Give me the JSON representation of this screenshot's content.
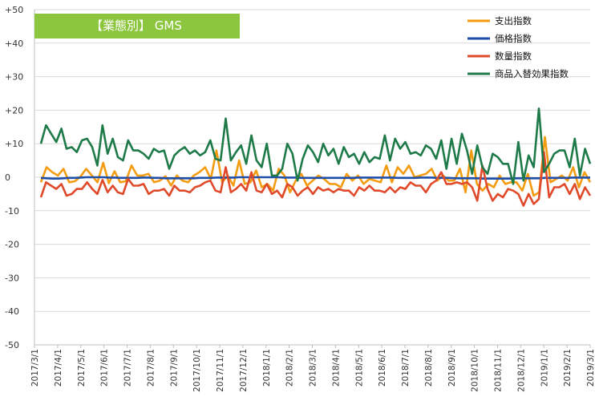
{
  "chart_data": {
    "type": "line",
    "title": "【業態別】 GMS",
    "xlabel": "",
    "ylabel": "",
    "ylim": [
      -50,
      50
    ],
    "y_ticks": [
      "+50",
      "+40",
      "+30",
      "+20",
      "+10",
      "0",
      "-10",
      "-20",
      "-30",
      "-40",
      "-50"
    ],
    "y_tick_values": [
      50,
      40,
      30,
      20,
      10,
      0,
      -10,
      -20,
      -30,
      -40,
      -50
    ],
    "x_range": [
      "2017/3/1",
      "2019/3/1"
    ],
    "x_ticks": [
      "2017/3/1",
      "2017/4/1",
      "2017/5/1",
      "2017/6/1",
      "2017/7/1",
      "2017/8/1",
      "2017/9/1",
      "2017/10/1",
      "2017/11/1",
      "2017/12/1",
      "2018/1/1",
      "2018/2/1",
      "2018/3/1",
      "2018/4/1",
      "2018/5/1",
      "2018/6/1",
      "2018/7/1",
      "2018/8/1",
      "2018/9/1",
      "2018/10/1",
      "2018/11/1",
      "2018/12/1",
      "2019/1/1",
      "2019/2/1",
      "2019/3/1"
    ],
    "grid": true,
    "legend_position": "top-right",
    "series": [
      {
        "name": "支出指数",
        "color": "#f39c12",
        "values": [
          -1.5,
          3,
          1.5,
          0.5,
          2.5,
          -1.5,
          -1.2,
          0.2,
          2.5,
          0.5,
          -1.5,
          4.3,
          -1.8,
          1.8,
          -1.5,
          -1.2,
          3.5,
          0.5,
          0.5,
          1,
          -1.5,
          -1,
          0.3,
          -2.5,
          0.5,
          -1,
          -1.5,
          0.5,
          1.5,
          3,
          -0.5,
          8,
          -1.5,
          0.5,
          -2.5,
          5,
          -2,
          -1.5,
          2,
          -3,
          -2,
          -4,
          2.5,
          0.5,
          -4.5,
          -1,
          1,
          -2.5,
          -1,
          0.5,
          -0.5,
          -2,
          -2,
          -3,
          1,
          -1,
          0.5,
          -2,
          -0.5,
          -1,
          -1.5,
          3.5,
          -1.5,
          3,
          1,
          3.5,
          0,
          0.5,
          1,
          2.5,
          -1,
          0.5,
          -1,
          -1,
          2.5,
          -4.5,
          8,
          -2,
          -4,
          -2,
          -3,
          0.5,
          -2,
          -1.5,
          -1.5,
          -4,
          1,
          -5.5,
          -4.5,
          12,
          -1.5,
          -0.5,
          0.5,
          -1,
          3,
          -3,
          1.5,
          -1.5
        ]
      },
      {
        "name": "価格指数",
        "color": "#1f4ea8",
        "values": [
          -0.2,
          -0.3,
          -0.4,
          -0.4,
          -0.3,
          -0.2,
          -0.2,
          -0.1,
          0,
          0,
          0,
          0,
          -0.1,
          -0.1,
          -0.2,
          -0.2,
          -0.2,
          -0.2,
          -0.1,
          -0.1,
          -0.2,
          -0.2,
          -0.3,
          -0.3,
          -0.3,
          -0.3,
          -0.3,
          -0.3,
          -0.2,
          -0.2,
          -0.2,
          -0.1,
          -0.1,
          -0.1,
          -0.1,
          0,
          0,
          0,
          0,
          0,
          0,
          0,
          0,
          -0.1,
          -0.1,
          -0.1,
          -0.2,
          -0.2,
          -0.2,
          -0.2,
          -0.2,
          -0.2,
          -0.2,
          -0.2,
          -0.2,
          -0.2,
          -0.1,
          -0.1,
          -0.1,
          -0.1,
          -0.1,
          -0.1,
          -0.1,
          -0.2,
          -0.2,
          -0.2,
          -0.2,
          -0.1,
          -0.1,
          -0.1,
          -0.2,
          -0.2,
          -0.2,
          -0.3,
          -0.3,
          -0.3,
          -0.3,
          -0.3,
          -0.4,
          -0.4,
          -0.4,
          -0.4,
          -0.4,
          -0.4,
          -0.3,
          -0.3,
          -0.3,
          -0.3,
          -0.3,
          -0.2,
          -0.2,
          -0.2,
          -0.2,
          -0.2,
          -0.1,
          -0.1,
          -0.1,
          -0.1
        ]
      },
      {
        "name": "数量指数",
        "color": "#e04a2a",
        "values": [
          -6,
          -1.5,
          -2.5,
          -3.5,
          -2,
          -5.5,
          -5,
          -3.5,
          -3.5,
          -1.5,
          -3.5,
          -5,
          -0.8,
          -4.5,
          -2.5,
          -4.5,
          -5,
          -0.5,
          -2.5,
          -2.5,
          -2,
          -5,
          -4,
          -4,
          -3.5,
          -5.5,
          -2.5,
          -4,
          -4,
          -4.5,
          -3,
          -2.5,
          -1.5,
          -1,
          -4,
          -4.5,
          3,
          -4.5,
          -3.5,
          -2,
          -4,
          1.5,
          -4,
          -4.5,
          -2,
          -5,
          -4,
          -6,
          -2,
          -3,
          -5.5,
          -4,
          -3,
          -5,
          -3,
          -4,
          -3.5,
          -4.5,
          -3.5,
          -4,
          -4,
          -5.5,
          -3,
          -4,
          -2.5,
          -4,
          -4,
          -4.5,
          -3,
          -4.5,
          -3,
          -3.5,
          -1.5,
          -2.5,
          -2.5,
          -4.5,
          -2,
          -1,
          1.5,
          -2,
          -2,
          -1.5,
          -2,
          -1.5,
          -3,
          -7,
          3.5,
          -3.5,
          -7,
          -5,
          -6,
          -3.5,
          -4,
          -5,
          -8.5,
          -5,
          -8,
          -6.5,
          7.5,
          -6,
          -3,
          -3,
          -2,
          -5,
          -2,
          -6.5,
          -3,
          -5.5
        ]
      },
      {
        "name": "商品入替効果指数",
        "color": "#1e7a48",
        "values": [
          10,
          15.5,
          13,
          10.5,
          14.5,
          8.5,
          9,
          7.5,
          11,
          11.5,
          9,
          3.5,
          15.5,
          7,
          11.5,
          6,
          5,
          11,
          8,
          8,
          7,
          5.5,
          8.5,
          7.5,
          8,
          2.5,
          6.5,
          8,
          9,
          7,
          8,
          6.5,
          7.5,
          11,
          5.5,
          5,
          17.5,
          5,
          7.5,
          9.5,
          4,
          12.5,
          5,
          3,
          10,
          0.5,
          0.5,
          2.5,
          10,
          7,
          -1,
          5.5,
          9.5,
          7.5,
          4.5,
          10,
          6.5,
          8.5,
          4,
          9,
          6,
          7,
          4,
          7.5,
          4.5,
          6,
          5.5,
          12.5,
          5,
          11.5,
          8.5,
          10.5,
          7,
          7.5,
          6.5,
          9.5,
          8.5,
          5.5,
          11,
          2.5,
          11.5,
          4,
          13,
          8,
          1,
          9.5,
          3,
          1,
          7,
          6,
          4,
          4,
          -2,
          10.5,
          -1,
          6.5,
          3,
          20.5,
          1.5,
          4,
          7,
          8,
          8,
          3,
          11.5,
          0.5,
          8.5,
          4
        ]
      }
    ]
  }
}
